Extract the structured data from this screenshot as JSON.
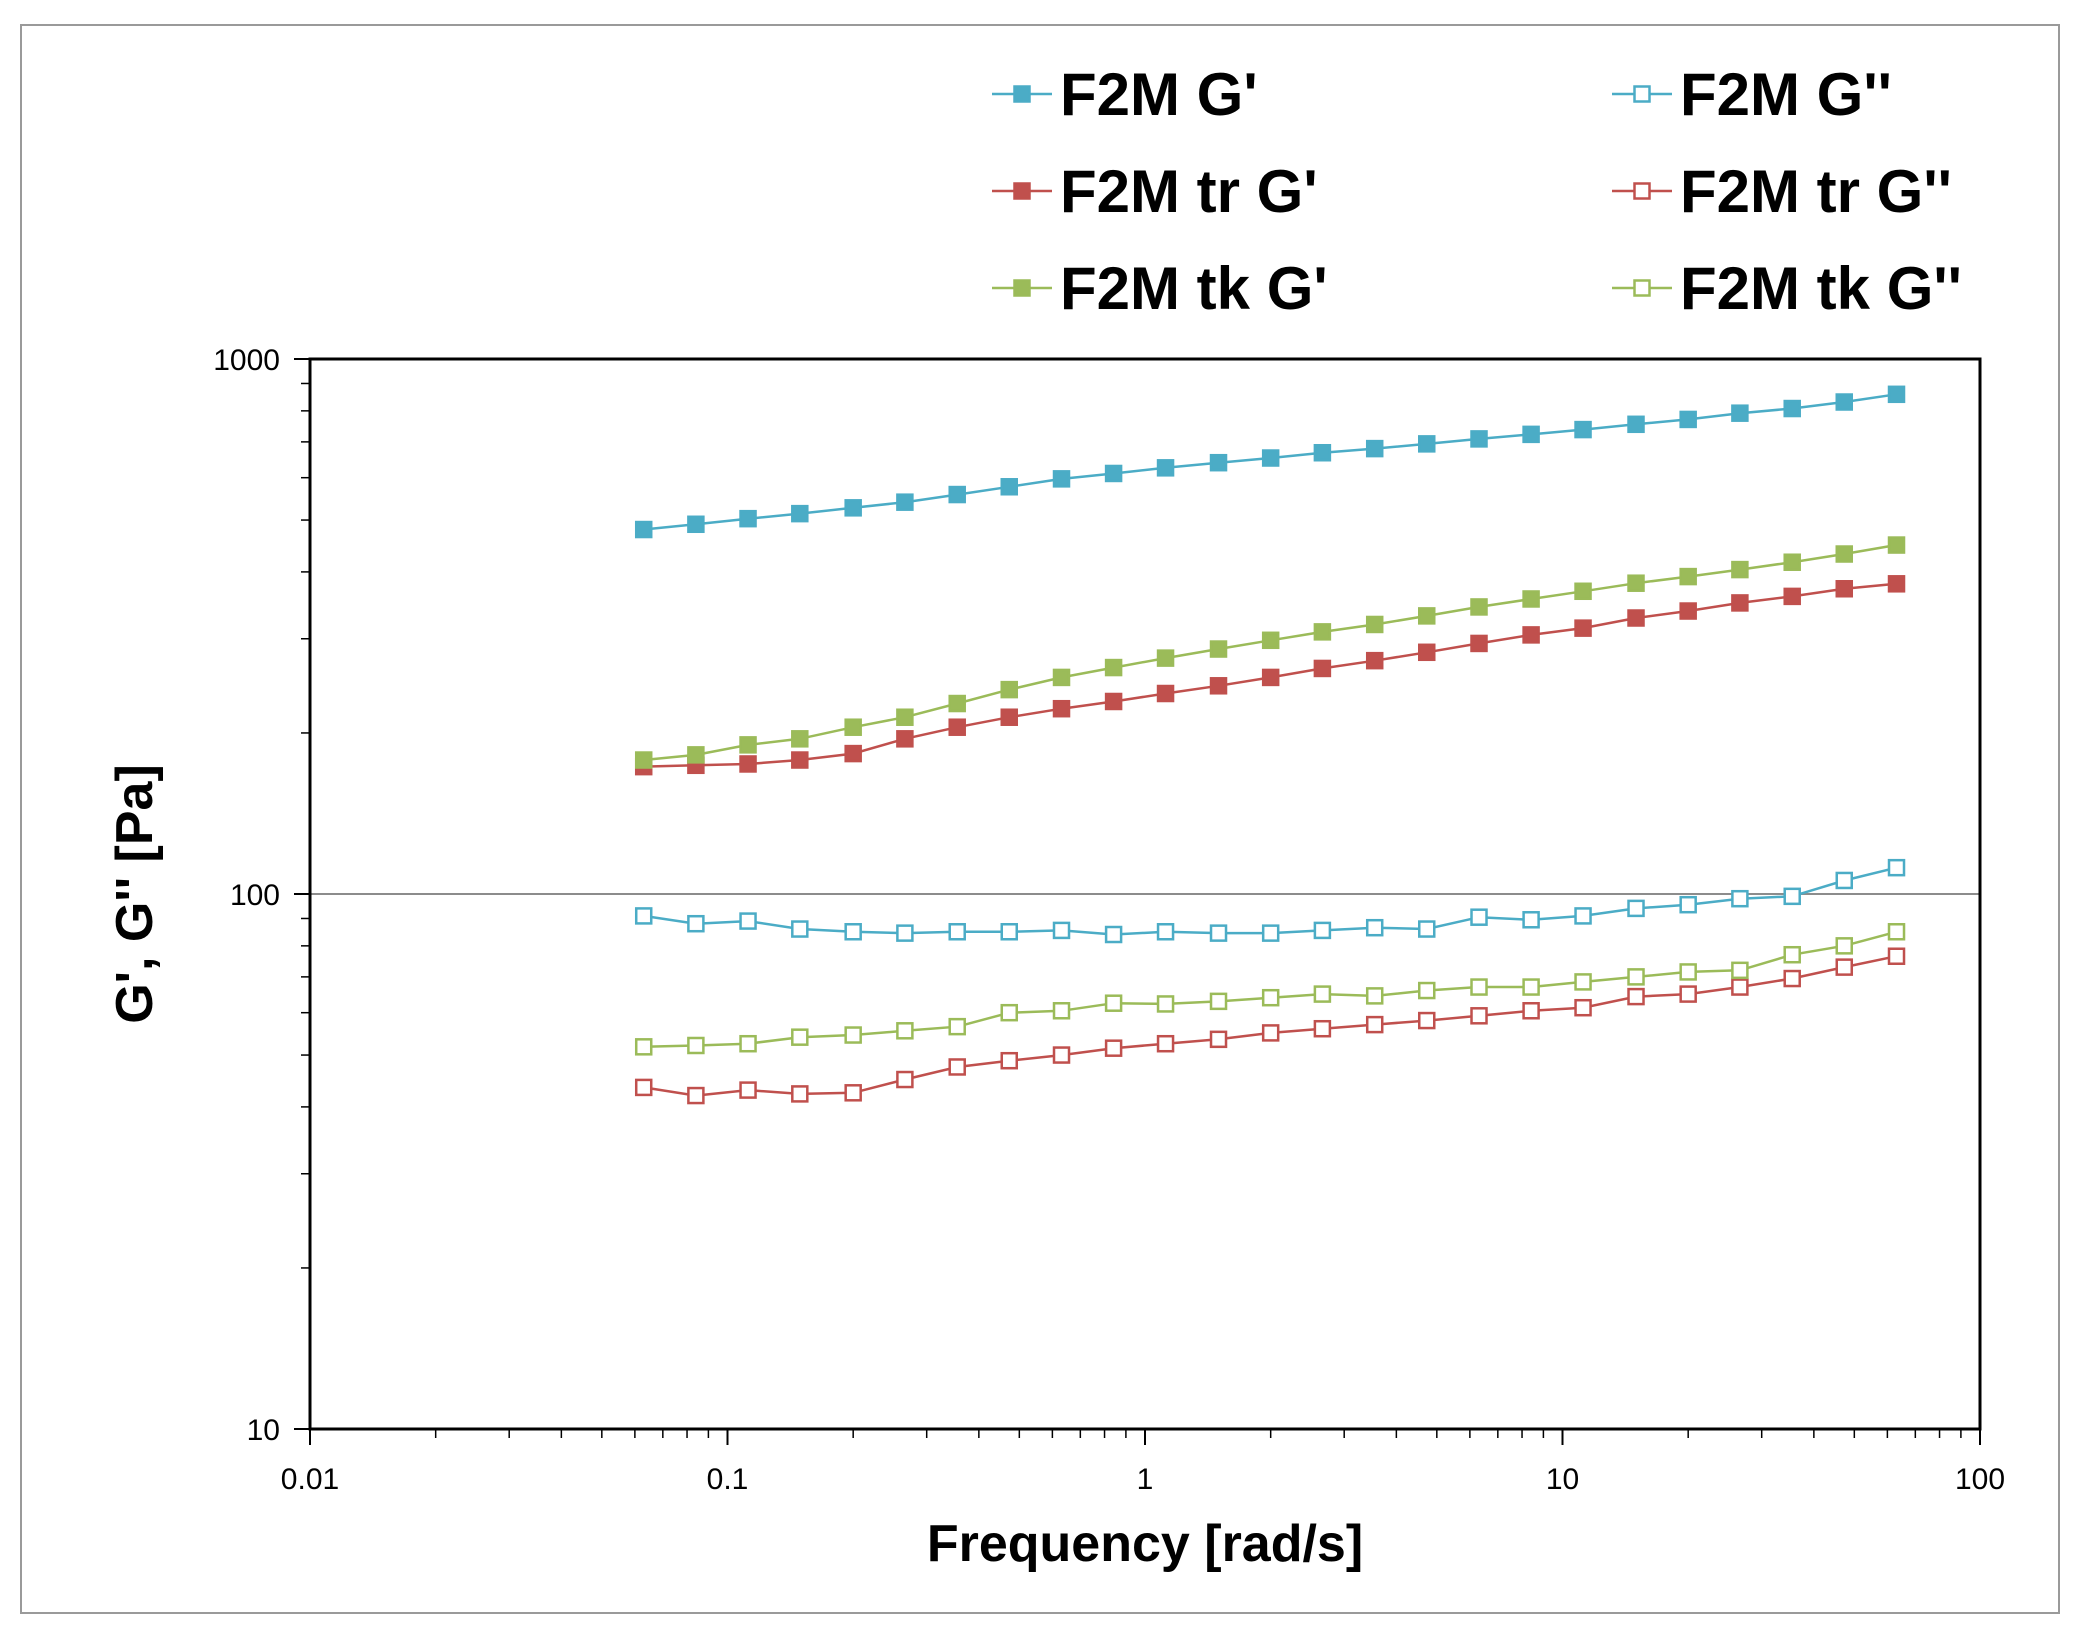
{
  "chart_data": {
    "type": "line",
    "title": "",
    "xlabel": "Frequency [rad/s]",
    "ylabel": "G', G'' [Pa]",
    "xscale": "log",
    "yscale": "log",
    "xlim": [
      0.01,
      100
    ],
    "ylim": [
      10,
      1000
    ],
    "x_ticks": [
      {
        "value": 0.01,
        "label": "0.01"
      },
      {
        "value": 0.1,
        "label": "0.1"
      },
      {
        "value": 1,
        "label": "1"
      },
      {
        "value": 10,
        "label": "10"
      },
      {
        "value": 100,
        "label": "100"
      }
    ],
    "y_ticks": [
      {
        "value": 10,
        "label": "10"
      },
      {
        "value": 100,
        "label": "100"
      },
      {
        "value": 1000,
        "label": "1000"
      }
    ],
    "gridlines": [
      100
    ],
    "legend_position": "top",
    "x": [
      0.063,
      0.084,
      0.112,
      0.149,
      0.2,
      0.266,
      0.355,
      0.473,
      0.631,
      0.841,
      1.12,
      1.5,
      2.0,
      2.66,
      3.55,
      4.73,
      6.31,
      8.41,
      11.2,
      15.0,
      20.0,
      26.6,
      35.5,
      47.3,
      63.1
    ],
    "series": [
      {
        "name": "F2M G'",
        "color": "#4BACC6",
        "marker": "square-filled",
        "values": [
          480,
          491,
          503,
          514,
          527,
          540,
          558,
          577,
          597,
          611,
          626,
          640,
          653,
          668,
          680,
          694,
          709,
          723,
          738,
          755,
          771,
          792,
          808,
          831,
          859
        ]
      },
      {
        "name": "F2M G''",
        "color": "#4BACC6",
        "marker": "square-open",
        "values": [
          91,
          88,
          89,
          86,
          85,
          84.5,
          85,
          85,
          85.5,
          84,
          85,
          84.5,
          84.5,
          85.5,
          86.5,
          86,
          90.5,
          89.5,
          91,
          94,
          95.5,
          98,
          99,
          106,
          112
        ]
      },
      {
        "name": "F2M tr G'",
        "color": "#C0504D",
        "marker": "square-filled",
        "values": [
          173,
          174,
          175,
          178,
          183,
          195,
          205,
          214,
          222,
          229,
          237,
          245,
          254,
          264,
          273,
          283,
          294,
          305,
          314,
          328,
          338,
          350,
          360,
          372,
          380
        ]
      },
      {
        "name": "F2M tr G''",
        "color": "#C0504D",
        "marker": "square-open",
        "values": [
          43.5,
          42,
          43,
          42.3,
          42.5,
          45,
          47.5,
          48.8,
          50,
          51.5,
          52.5,
          53.5,
          55,
          56,
          57,
          58,
          59.2,
          60.5,
          61.3,
          64.3,
          65,
          67,
          69.5,
          73,
          76.5
        ]
      },
      {
        "name": "F2M tk G'",
        "color": "#9BBB59",
        "marker": "square-filled",
        "values": [
          178,
          182,
          190,
          195,
          205,
          214,
          227,
          241,
          254,
          265,
          276,
          287,
          298,
          309,
          319,
          331,
          344,
          356,
          368,
          381,
          392,
          404,
          417,
          432,
          449
        ]
      },
      {
        "name": "F2M tk G''",
        "color": "#9BBB59",
        "marker": "square-open",
        "values": [
          51.8,
          52.1,
          52.5,
          54,
          54.5,
          55.5,
          56.5,
          60,
          60.5,
          62.5,
          62.3,
          63,
          64,
          65,
          64.5,
          66,
          67,
          67,
          68.5,
          70,
          71.5,
          72,
          77,
          80,
          85
        ]
      }
    ]
  }
}
